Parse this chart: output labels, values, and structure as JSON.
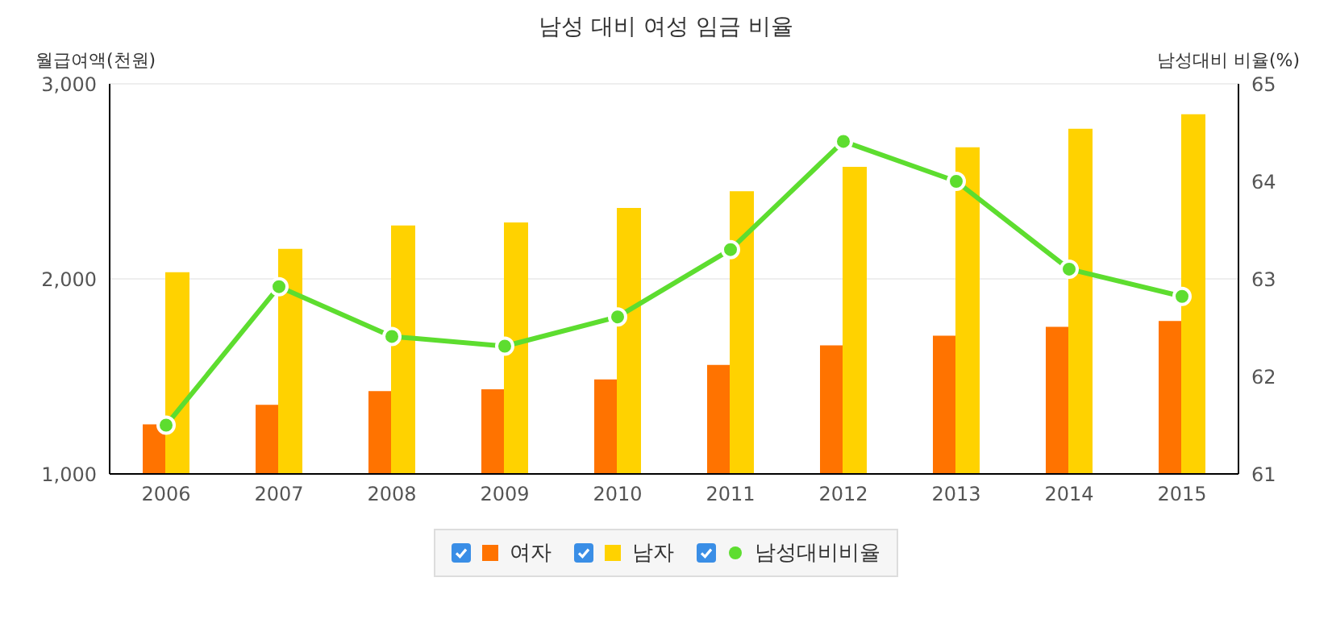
{
  "chart_data": {
    "type": "bar",
    "title": "남성 대비 여성 임금 비율",
    "ylabel": "월급여액(천원)",
    "y2label": "남성대비 비율(%)",
    "categories": [
      "2006",
      "2007",
      "2008",
      "2009",
      "2010",
      "2011",
      "2012",
      "2013",
      "2014",
      "2015"
    ],
    "series": [
      {
        "name": "여자",
        "color": "#ff7300",
        "values": [
          1250,
          1350,
          1420,
          1430,
          1480,
          1555,
          1655,
          1705,
          1750,
          1780
        ]
      },
      {
        "name": "남자",
        "color": "#ffd200",
        "values": [
          2030,
          2150,
          2270,
          2285,
          2360,
          2445,
          2570,
          2670,
          2765,
          2840
        ]
      },
      {
        "name": "남성대비비율",
        "type": "line",
        "axis": "y2",
        "color": "#5ddd2f",
        "values": [
          61.5,
          62.92,
          62.41,
          62.31,
          62.61,
          63.3,
          64.41,
          64.0,
          63.1,
          62.82
        ]
      }
    ],
    "ylim": [
      1000,
      3000
    ],
    "yticks": [
      {
        "value": 1000,
        "label": "1,000"
      },
      {
        "value": 2000,
        "label": "2,000"
      },
      {
        "value": 3000,
        "label": "3,000"
      }
    ],
    "y2lim": [
      61,
      65
    ],
    "y2ticks": [
      61,
      62,
      63,
      64,
      65
    ],
    "grid": "y",
    "legend": "bottom",
    "marker": "circle"
  }
}
